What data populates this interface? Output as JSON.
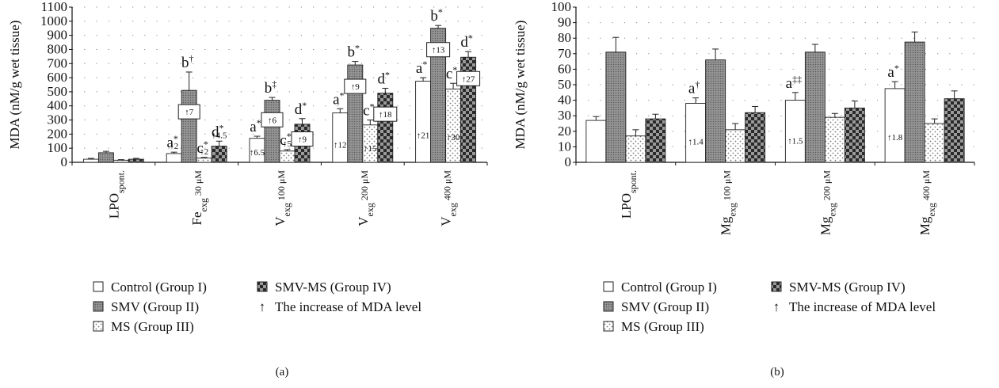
{
  "y_axis_label": "MDA (nM/g wet tissue)",
  "legend": [
    {
      "key": "control",
      "label": "Control (Group I)"
    },
    {
      "key": "smv",
      "label": "SMV (Group II)"
    },
    {
      "key": "ms",
      "label": "MS (Group III)"
    },
    {
      "key": "smvms",
      "label": "SMV-MS (Group IV)"
    },
    {
      "key": "arrow",
      "label": "The increase of MDA level",
      "symbol": "↑"
    }
  ],
  "chart_data": [
    {
      "type": "bar",
      "panel_label": "(a)",
      "ylabel": "MDA (nM/g wet tissue)",
      "ylim": [
        0,
        1100
      ],
      "yticks": [
        0,
        100,
        200,
        300,
        400,
        500,
        600,
        700,
        800,
        900,
        1000,
        1100
      ],
      "categories": [
        {
          "main": "LPO",
          "sub": "spont."
        },
        {
          "main": "Fe",
          "sub": "exg",
          "suffix": "30 μM"
        },
        {
          "main": "V",
          "sub": "exg",
          "suffix": "100 μM"
        },
        {
          "main": "V",
          "sub": "exg",
          "suffix": "200 μM"
        },
        {
          "main": "V",
          "sub": "exg",
          "suffix": "400 μM"
        }
      ],
      "series": [
        {
          "key": "control",
          "values": [
            22,
            62,
            170,
            350,
            575
          ],
          "errors": [
            6,
            10,
            15,
            30,
            25
          ]
        },
        {
          "key": "smv",
          "values": [
            68,
            510,
            440,
            690,
            950
          ],
          "errors": [
            10,
            130,
            20,
            25,
            20
          ]
        },
        {
          "key": "ms",
          "values": [
            15,
            30,
            80,
            265,
            520
          ],
          "errors": [
            4,
            5,
            10,
            35,
            40
          ]
        },
        {
          "key": "smvms",
          "values": [
            22,
            115,
            270,
            490,
            745
          ],
          "errors": [
            6,
            35,
            40,
            35,
            40
          ]
        }
      ],
      "letters": [
        {
          "cat": 1,
          "series": 0,
          "letter": "a",
          "sup": "*"
        },
        {
          "cat": 1,
          "series": 1,
          "letter": "b",
          "sup": "†"
        },
        {
          "cat": 1,
          "series": 2,
          "letter": "c",
          "sup": "*"
        },
        {
          "cat": 1,
          "series": 3,
          "letter": "d",
          "sup": "*"
        },
        {
          "cat": 2,
          "series": 0,
          "letter": "a",
          "sup": "*"
        },
        {
          "cat": 2,
          "series": 1,
          "letter": "b",
          "sup": "‡"
        },
        {
          "cat": 2,
          "series": 2,
          "letter": "c",
          "sup": "*"
        },
        {
          "cat": 2,
          "series": 3,
          "letter": "d",
          "sup": "*"
        },
        {
          "cat": 3,
          "series": 0,
          "letter": "a",
          "sup": "*"
        },
        {
          "cat": 3,
          "series": 1,
          "letter": "b",
          "sup": "*"
        },
        {
          "cat": 3,
          "series": 2,
          "letter": "c",
          "sup": "*"
        },
        {
          "cat": 3,
          "series": 3,
          "letter": "d",
          "sup": "*"
        },
        {
          "cat": 4,
          "series": 0,
          "letter": "a",
          "sup": "*"
        },
        {
          "cat": 4,
          "series": 1,
          "letter": "b",
          "sup": "*"
        },
        {
          "cat": 4,
          "series": 2,
          "letter": "c",
          "sup": "*"
        },
        {
          "cat": 4,
          "series": 3,
          "letter": "d",
          "sup": "*"
        }
      ],
      "increases": [
        {
          "cat": 1,
          "series": 0,
          "text": "↑2",
          "boxed": false
        },
        {
          "cat": 1,
          "series": 1,
          "text": "↑7",
          "boxed": true
        },
        {
          "cat": 1,
          "series": 2,
          "text": "↑2",
          "boxed": false
        },
        {
          "cat": 1,
          "series": 3,
          "text": "↑4.5",
          "boxed": false
        },
        {
          "cat": 2,
          "series": 0,
          "text": "↑6.5",
          "boxed": false
        },
        {
          "cat": 2,
          "series": 1,
          "text": "↑6",
          "boxed": true
        },
        {
          "cat": 2,
          "series": 2,
          "text": "↑5",
          "boxed": false
        },
        {
          "cat": 2,
          "series": 3,
          "text": "↑9",
          "boxed": true
        },
        {
          "cat": 3,
          "series": 0,
          "text": "↑12",
          "boxed": false
        },
        {
          "cat": 3,
          "series": 1,
          "text": "↑9",
          "boxed": true
        },
        {
          "cat": 3,
          "series": 2,
          "text": "↑15",
          "boxed": false
        },
        {
          "cat": 3,
          "series": 3,
          "text": "↑18",
          "boxed": true
        },
        {
          "cat": 4,
          "series": 0,
          "text": "↑21",
          "boxed": false
        },
        {
          "cat": 4,
          "series": 1,
          "text": "↑13",
          "boxed": true
        },
        {
          "cat": 4,
          "series": 2,
          "text": "↑30",
          "boxed": false
        },
        {
          "cat": 4,
          "series": 3,
          "text": "↑27",
          "boxed": true
        }
      ],
      "grid": "dotted"
    },
    {
      "type": "bar",
      "panel_label": "(b)",
      "ylabel": "MDA (nM/g wet tissue)",
      "ylim": [
        0,
        100
      ],
      "yticks": [
        0,
        10,
        20,
        30,
        40,
        50,
        60,
        70,
        80,
        90,
        100
      ],
      "categories": [
        {
          "main": "LPO",
          "sub": "spont."
        },
        {
          "main": "Mg",
          "sub": "exg",
          "suffix": "100 μM"
        },
        {
          "main": "Mg",
          "sub": "exg",
          "suffix": "200 μM"
        },
        {
          "main": "Mg",
          "sub": "exg",
          "suffix": "400 μM"
        }
      ],
      "series": [
        {
          "key": "control",
          "values": [
            27,
            38,
            40,
            47.5
          ],
          "errors": [
            2.5,
            3.5,
            5,
            4.5
          ]
        },
        {
          "key": "smv",
          "values": [
            71,
            66,
            71,
            77.5
          ],
          "errors": [
            9.5,
            7,
            5,
            6.5
          ]
        },
        {
          "key": "ms",
          "values": [
            17,
            21,
            29,
            25
          ],
          "errors": [
            4,
            4,
            2.5,
            3
          ]
        },
        {
          "key": "smvms",
          "values": [
            28,
            32,
            35,
            41
          ],
          "errors": [
            3,
            4,
            4.5,
            5
          ]
        }
      ],
      "letters": [
        {
          "cat": 1,
          "series": 0,
          "letter": "a",
          "sup": "†"
        },
        {
          "cat": 2,
          "series": 0,
          "letter": "a",
          "sup": "‡‡"
        },
        {
          "cat": 3,
          "series": 0,
          "letter": "a",
          "sup": "*"
        }
      ],
      "increases": [
        {
          "cat": 1,
          "series": 0,
          "text": "↑1.4",
          "boxed": false
        },
        {
          "cat": 2,
          "series": 0,
          "text": "↑1.5",
          "boxed": false
        },
        {
          "cat": 3,
          "series": 0,
          "text": "↑1.8",
          "boxed": false
        }
      ],
      "grid": "dotted"
    }
  ]
}
